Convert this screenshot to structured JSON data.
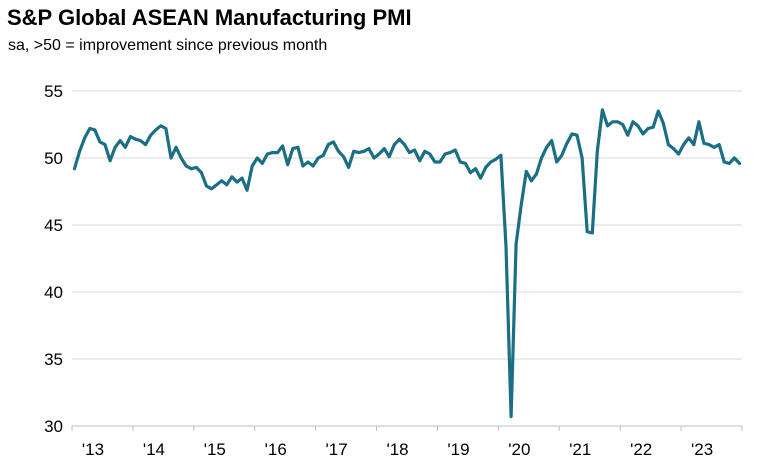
{
  "chart_data": {
    "type": "line",
    "title": "S&P Global ASEAN Manufacturing PMI",
    "subtitle": "sa, >50 = improvement since previous month",
    "xlabel": "",
    "ylabel": "",
    "x_tick_labels": [
      "'13",
      "'14",
      "'15",
      "'16",
      "'17",
      "'18",
      "'19",
      "'20",
      "'21",
      "'22",
      "'23"
    ],
    "x_tick_years": [
      2013,
      2014,
      2015,
      2016,
      2017,
      2018,
      2019,
      2020,
      2021,
      2022,
      2023
    ],
    "xlim": [
      "2013-01",
      "2023-12"
    ],
    "y_tick_labels": [
      "30",
      "35",
      "40",
      "45",
      "50",
      "55"
    ],
    "y_ticks": [
      30,
      35,
      40,
      45,
      50,
      55
    ],
    "ylim": [
      30,
      55
    ],
    "grid": "horizontal",
    "line_color": "#1a6f85",
    "grid_color": "#d9d9d9",
    "series": [
      {
        "x": [
          "2013-01",
          "2013-02",
          "2013-03",
          "2013-04",
          "2013-05",
          "2013-06",
          "2013-07",
          "2013-08",
          "2013-09",
          "2013-10",
          "2013-11",
          "2013-12",
          "2014-01",
          "2014-02",
          "2014-03",
          "2014-04",
          "2014-05",
          "2014-06",
          "2014-07",
          "2014-08",
          "2014-09",
          "2014-10",
          "2014-11",
          "2014-12",
          "2015-01",
          "2015-02",
          "2015-03",
          "2015-04",
          "2015-05",
          "2015-06",
          "2015-07",
          "2015-08",
          "2015-09",
          "2015-10",
          "2015-11",
          "2015-12",
          "2016-01",
          "2016-02",
          "2016-03",
          "2016-04",
          "2016-05",
          "2016-06",
          "2016-07",
          "2016-08",
          "2016-09",
          "2016-10",
          "2016-11",
          "2016-12",
          "2017-01",
          "2017-02",
          "2017-03",
          "2017-04",
          "2017-05",
          "2017-06",
          "2017-07",
          "2017-08",
          "2017-09",
          "2017-10",
          "2017-11",
          "2017-12",
          "2018-01",
          "2018-02",
          "2018-03",
          "2018-04",
          "2018-05",
          "2018-06",
          "2018-07",
          "2018-08",
          "2018-09",
          "2018-10",
          "2018-11",
          "2018-12",
          "2019-01",
          "2019-02",
          "2019-03",
          "2019-04",
          "2019-05",
          "2019-06",
          "2019-07",
          "2019-08",
          "2019-09",
          "2019-10",
          "2019-11",
          "2019-12",
          "2020-01",
          "2020-02",
          "2020-03",
          "2020-04",
          "2020-05",
          "2020-06",
          "2020-07",
          "2020-08",
          "2020-09",
          "2020-10",
          "2020-11",
          "2020-12",
          "2021-01",
          "2021-02",
          "2021-03",
          "2021-04",
          "2021-05",
          "2021-06",
          "2021-07",
          "2021-08",
          "2021-09",
          "2021-10",
          "2021-11",
          "2021-12",
          "2022-01",
          "2022-02",
          "2022-03",
          "2022-04",
          "2022-05",
          "2022-06",
          "2022-07",
          "2022-08",
          "2022-09",
          "2022-10",
          "2022-11",
          "2022-12",
          "2023-01",
          "2023-02",
          "2023-03",
          "2023-04",
          "2023-05",
          "2023-06",
          "2023-07",
          "2023-08",
          "2023-09",
          "2023-10",
          "2023-11",
          "2023-12"
        ],
        "values": [
          49.2,
          50.5,
          51.5,
          52.2,
          52.1,
          51.2,
          51.0,
          49.8,
          50.8,
          51.3,
          50.8,
          51.6,
          51.4,
          51.3,
          51.0,
          51.7,
          52.1,
          52.4,
          52.2,
          50.0,
          50.8,
          50.0,
          49.4,
          49.2,
          49.3,
          48.9,
          47.9,
          47.7,
          48.0,
          48.3,
          48.0,
          48.6,
          48.2,
          48.5,
          47.6,
          49.4,
          50.0,
          49.6,
          50.3,
          50.4,
          50.4,
          50.9,
          49.5,
          50.7,
          50.8,
          49.4,
          49.7,
          49.4,
          50.0,
          50.2,
          51.0,
          51.2,
          50.5,
          50.1,
          49.3,
          50.5,
          50.4,
          50.5,
          50.7,
          50.0,
          50.3,
          50.7,
          50.1,
          51.0,
          51.4,
          51.0,
          50.4,
          50.6,
          49.8,
          50.5,
          50.3,
          49.7,
          49.7,
          50.3,
          50.4,
          50.6,
          49.7,
          49.6,
          48.9,
          49.2,
          48.5,
          49.3,
          49.7,
          49.9,
          50.2,
          43.4,
          30.7,
          43.6,
          46.5,
          49.0,
          48.3,
          48.8,
          50.0,
          50.8,
          51.3,
          49.7,
          50.2,
          51.1,
          51.8,
          51.7,
          50.0,
          44.5,
          44.4,
          50.5,
          53.6,
          52.4,
          52.7,
          52.7,
          52.5,
          51.7,
          52.7,
          52.4,
          51.8,
          52.2,
          52.3,
          53.5,
          52.6,
          51.0,
          50.7,
          50.3,
          51.0,
          51.5,
          51.0,
          52.7,
          51.1,
          51.0,
          50.8,
          51.0,
          49.7,
          49.6,
          50.0,
          49.6
        ]
      }
    ]
  }
}
